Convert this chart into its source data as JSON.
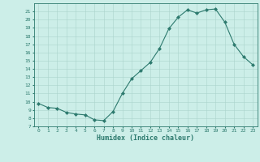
{
  "x": [
    0,
    1,
    2,
    3,
    4,
    5,
    6,
    7,
    8,
    9,
    10,
    11,
    12,
    13,
    14,
    15,
    16,
    17,
    18,
    19,
    20,
    21,
    22,
    23
  ],
  "y": [
    9.8,
    9.3,
    9.2,
    8.7,
    8.5,
    8.4,
    7.8,
    7.7,
    8.8,
    11.0,
    12.8,
    13.8,
    14.8,
    16.5,
    18.9,
    20.3,
    21.2,
    20.8,
    21.2,
    21.3,
    19.7,
    17.0,
    15.5,
    14.5
  ],
  "xlabel": "Humidex (Indice chaleur)",
  "ylim": [
    7,
    22
  ],
  "xlim": [
    -0.5,
    23.5
  ],
  "yticks": [
    7,
    8,
    9,
    10,
    11,
    12,
    13,
    14,
    15,
    16,
    17,
    18,
    19,
    20,
    21
  ],
  "xticks": [
    0,
    1,
    2,
    3,
    4,
    5,
    6,
    7,
    8,
    9,
    10,
    11,
    12,
    13,
    14,
    15,
    16,
    17,
    18,
    19,
    20,
    21,
    22,
    23
  ],
  "line_color": "#2d7a6e",
  "marker": "D",
  "marker_size": 2.0,
  "bg_color": "#cceee8",
  "grid_color": "#aad4cc",
  "xlabel_fontsize": 6.0,
  "tick_fontsize": 4.5
}
